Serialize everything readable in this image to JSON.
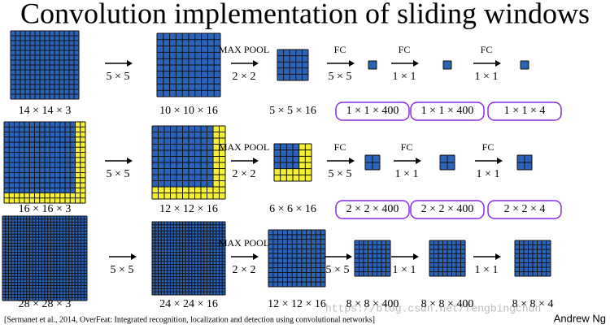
{
  "title": "Convolution implementation of sliding windows",
  "rows": [
    {
      "stages": [
        "14 × 14 × 3",
        "10 × 10 × 16",
        "5 × 5 × 16",
        "1 × 1 × 400",
        "1 × 1 × 400",
        "1 × 1 × 4"
      ],
      "ops": [
        {
          "size": "5 × 5"
        },
        {
          "label": "MAX POOL",
          "size": "2 × 2"
        },
        {
          "label": "FC",
          "size": "5 × 5"
        },
        {
          "label": "FC",
          "size": "1 × 1"
        },
        {
          "label": "FC",
          "size": "1 × 1"
        }
      ]
    },
    {
      "stages": [
        "16 × 16 × 3",
        "12 × 12 × 16",
        "6 × 6 × 16",
        "2 × 2 × 400",
        "2 × 2 × 400",
        "2 × 2 × 4"
      ],
      "ops": [
        {
          "size": "5 × 5"
        },
        {
          "label": "MAX POOL",
          "size": "2 × 2"
        },
        {
          "label": "FC",
          "size": "5 × 5"
        },
        {
          "label": "FC",
          "size": "1 × 1"
        },
        {
          "label": "FC",
          "size": "1 × 1"
        }
      ]
    },
    {
      "stages": [
        "28 × 28 × 3",
        "24 × 24 × 16",
        "12 × 12 × 16",
        "8 × 8 × 400",
        "8 × 8 × 400",
        "8 × 8 × 4"
      ],
      "ops": [
        {
          "size": "5 × 5"
        },
        {
          "label": "MAX POOL",
          "size": "2 × 2"
        },
        {
          "size": "5 × 5"
        },
        {
          "size": "1 × 1"
        },
        {
          "size": "1 × 1"
        }
      ]
    }
  ],
  "citation": "[Sermanet et al., 2014, OverFeat: Integrated recognition, localization and detection using convolutional networks]",
  "author": "Andrew Ng",
  "watermark": "https://blog.csdn.net/fengbingchun"
}
